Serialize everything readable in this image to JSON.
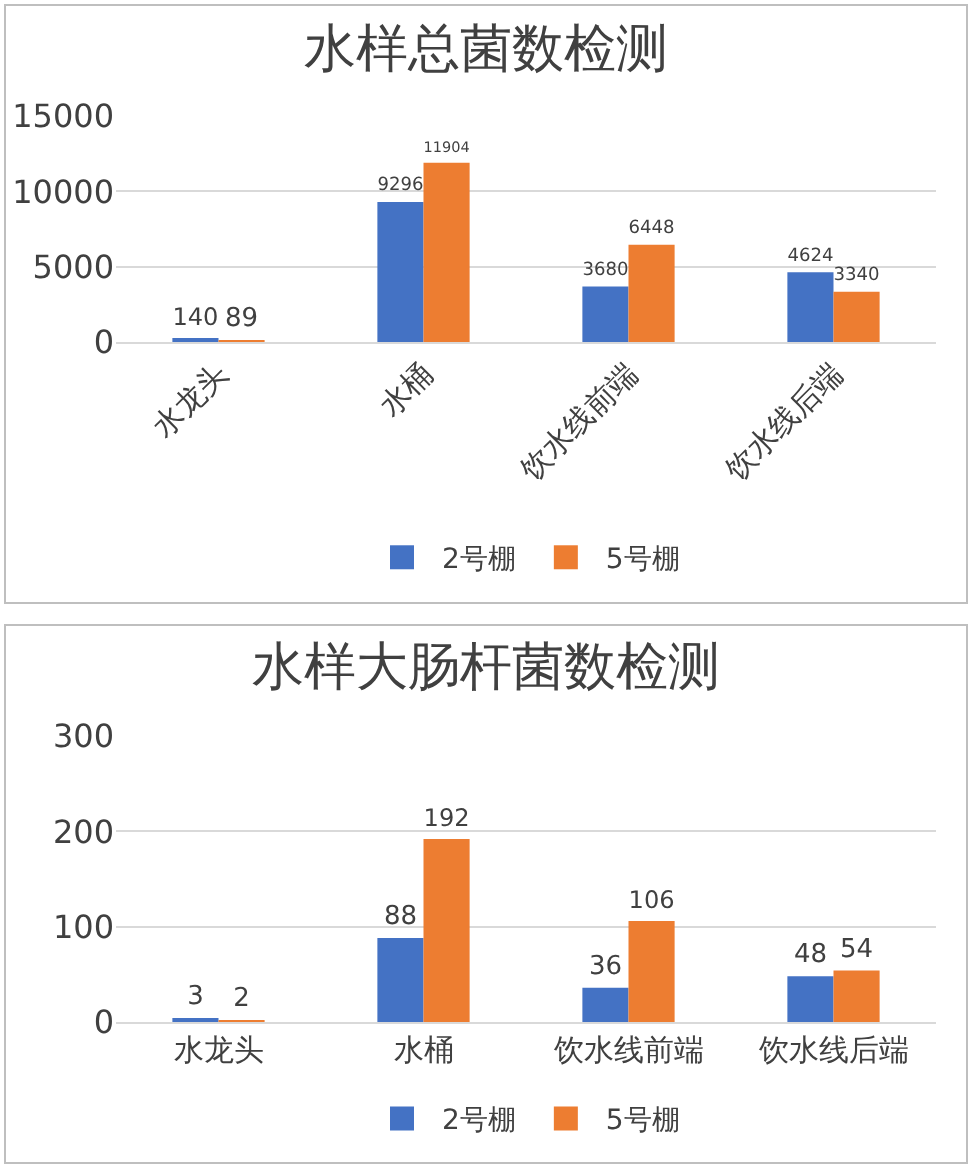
{
  "chart_data": [
    {
      "type": "bar",
      "title": "水样总菌数检测",
      "categories": [
        "水龙头",
        "水桶",
        "饮水线前端",
        "饮水线后端"
      ],
      "series": [
        {
          "name": "2号棚",
          "color": "#4472c4",
          "values": [
            140,
            9296,
            3680,
            4624
          ]
        },
        {
          "name": "5号棚",
          "color": "#ed7d31",
          "values": [
            89,
            11904,
            6448,
            3340
          ]
        }
      ],
      "ylim": [
        0,
        15000
      ],
      "yticks": [
        0,
        5000,
        10000,
        15000
      ],
      "grid": "y",
      "legend": "bottom",
      "data_labels": true
    },
    {
      "type": "bar",
      "title": "水样大肠杆菌数检测",
      "categories": [
        "水龙头",
        "水桶",
        "饮水线前端",
        "饮水线后端"
      ],
      "series": [
        {
          "name": "2号棚",
          "color": "#4472c4",
          "values": [
            3,
            88,
            36,
            48
          ]
        },
        {
          "name": "5号棚",
          "color": "#ed7d31",
          "values": [
            2,
            192,
            106,
            54
          ]
        }
      ],
      "ylim": [
        0,
        300
      ],
      "yticks": [
        0,
        100,
        200,
        300
      ],
      "grid": "y",
      "legend": "bottom",
      "data_labels": true
    }
  ]
}
